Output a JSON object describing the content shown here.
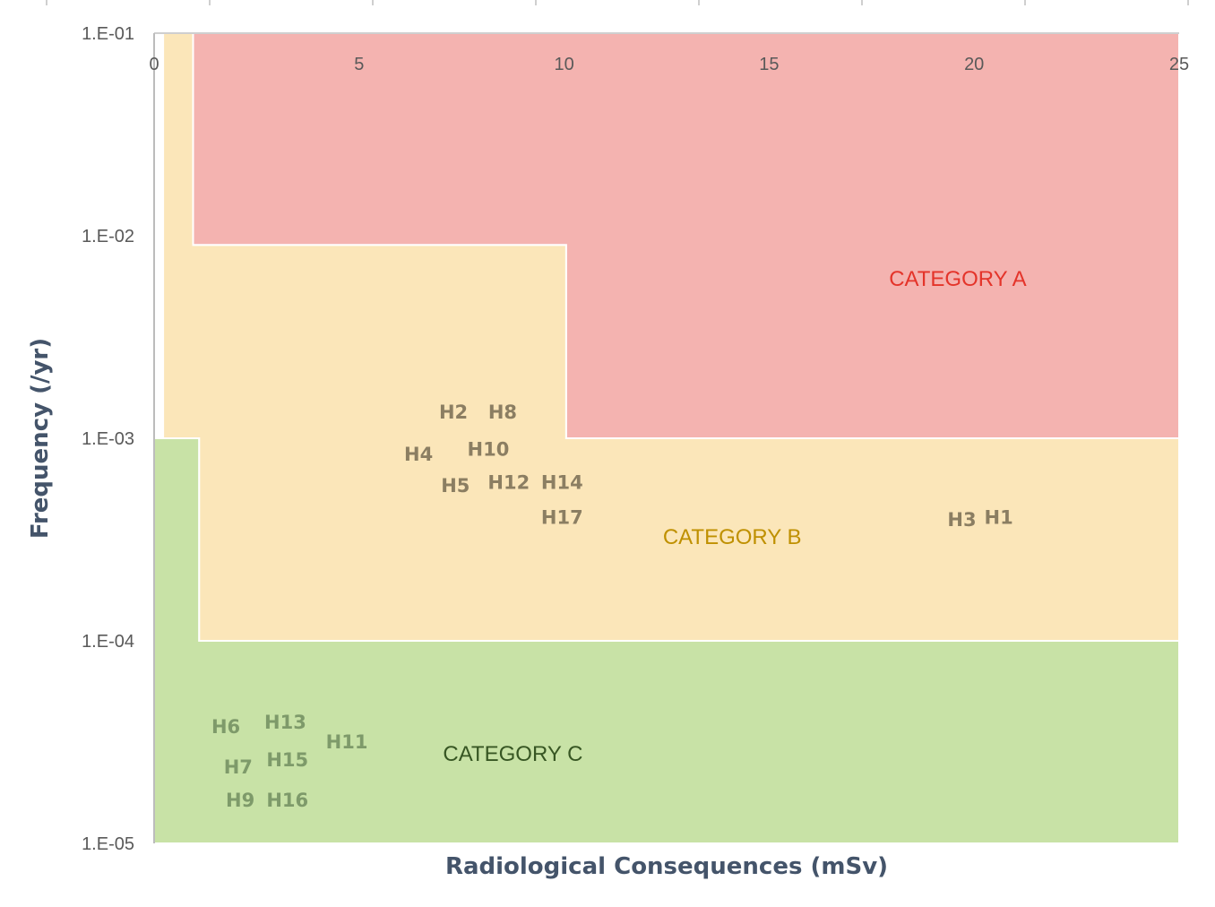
{
  "chart_data": {
    "type": "scatter",
    "title": "",
    "xlabel": "Radiological Consequences (mSv)",
    "ylabel": "Frequency (/yr)",
    "x_axis": {
      "min": 0,
      "max": 25,
      "ticks": [
        0,
        5,
        10,
        15,
        20,
        25
      ],
      "tick_labels": [
        "0",
        "5",
        "10",
        "15",
        "20",
        "25"
      ],
      "position": "top"
    },
    "y_axis": {
      "scale": "log",
      "min": 1e-05,
      "max": 0.1,
      "ticks": [
        0.1,
        0.01,
        0.001,
        0.0001,
        1e-05
      ],
      "tick_labels": [
        "1.E-01",
        "1.E-02",
        "1.E-03",
        "1.E-04",
        "1.E-05"
      ]
    },
    "grid": false,
    "regions": [
      {
        "name": "CATEGORY C",
        "color": "#c8e2a6",
        "label_color": "#375623",
        "label_x": 8.75,
        "label_y": 2.8e-05,
        "boundary": [
          [
            0,
            1e-05
          ],
          [
            25,
            1e-05
          ],
          [
            25,
            0.0001
          ],
          [
            1.1,
            0.0001
          ],
          [
            1.1,
            0.001
          ],
          [
            0,
            0.001
          ]
        ]
      },
      {
        "name": "CATEGORY B",
        "color": "#fbe6b9",
        "label_color": "#bf9000",
        "label_x": 14.1,
        "label_y": 0.00033,
        "boundary": [
          [
            0.22,
            0.1
          ],
          [
            0.95,
            0.1
          ],
          [
            0.95,
            0.009
          ],
          [
            10.05,
            0.009
          ],
          [
            10.05,
            0.001
          ],
          [
            25,
            0.001
          ],
          [
            25,
            0.0001
          ],
          [
            1.1,
            0.0001
          ],
          [
            1.1,
            0.001
          ],
          [
            0.22,
            0.001
          ]
        ]
      },
      {
        "name": "CATEGORY A",
        "color": "#f4b3b0",
        "label_color": "#e4342a",
        "label_x": 19.6,
        "label_y": 0.0062,
        "boundary": [
          [
            0.95,
            0.1
          ],
          [
            25,
            0.1
          ],
          [
            25,
            0.001
          ],
          [
            10.05,
            0.001
          ],
          [
            10.05,
            0.009
          ],
          [
            0.95,
            0.009
          ]
        ]
      }
    ],
    "points": [
      {
        "label": "H1",
        "x": 20.6,
        "y": 0.00041
      },
      {
        "label": "H2",
        "x": 7.3,
        "y": 0.00136
      },
      {
        "label": "H3",
        "x": 19.7,
        "y": 0.0004
      },
      {
        "label": "H4",
        "x": 6.45,
        "y": 0.00084
      },
      {
        "label": "H5",
        "x": 7.35,
        "y": 0.00059
      },
      {
        "label": "H6",
        "x": 1.75,
        "y": 3.8e-05
      },
      {
        "label": "H7",
        "x": 2.05,
        "y": 2.4e-05
      },
      {
        "label": "H8",
        "x": 8.5,
        "y": 0.00136
      },
      {
        "label": "H9",
        "x": 2.1,
        "y": 1.65e-05
      },
      {
        "label": "H10",
        "x": 8.15,
        "y": 0.00089
      },
      {
        "label": "H11",
        "x": 4.7,
        "y": 3.2e-05
      },
      {
        "label": "H12",
        "x": 8.65,
        "y": 0.00061
      },
      {
        "label": "H13",
        "x": 3.2,
        "y": 4e-05
      },
      {
        "label": "H14",
        "x": 9.95,
        "y": 0.00061
      },
      {
        "label": "H15",
        "x": 3.25,
        "y": 2.6e-05
      },
      {
        "label": "H16",
        "x": 3.25,
        "y": 1.65e-05
      },
      {
        "label": "H17",
        "x": 9.95,
        "y": 0.00041
      }
    ]
  }
}
